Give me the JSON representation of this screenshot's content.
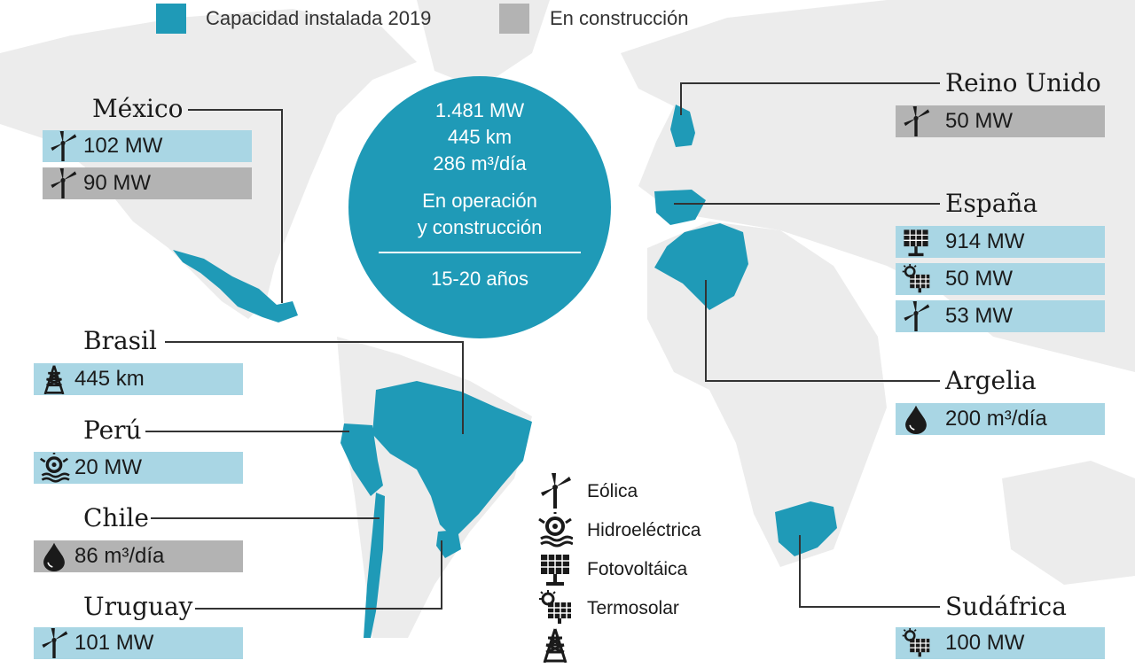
{
  "legend": {
    "installed_label": "Capacidad instalada 2019",
    "construction_label": "En construcción",
    "installed_color": "#1f9ab7",
    "construction_color": "#b3b3b3"
  },
  "summary": {
    "power": "1.481 MW",
    "distance": "445 km",
    "water": "286 m³/día",
    "status_line1": "En operación",
    "status_line2": "y construcción",
    "duration": "15-20 años"
  },
  "countries": {
    "mexico": {
      "name": "México",
      "values": [
        {
          "icon": "wind-icon",
          "value": "102 MW",
          "status": "installed"
        },
        {
          "icon": "wind-icon",
          "value": "90 MW",
          "status": "construction"
        }
      ]
    },
    "brasil": {
      "name": "Brasil",
      "values": [
        {
          "icon": "transmission-tower-icon",
          "value": "445 km",
          "status": "installed"
        }
      ]
    },
    "peru": {
      "name": "Perú",
      "values": [
        {
          "icon": "hydro-icon",
          "value": "20 MW",
          "status": "installed"
        }
      ]
    },
    "chile": {
      "name": "Chile",
      "values": [
        {
          "icon": "water-drop-icon",
          "value": "86 m³/día",
          "status": "construction"
        }
      ]
    },
    "uruguay": {
      "name": "Uruguay",
      "values": [
        {
          "icon": "wind-icon",
          "value": "101 MW",
          "status": "installed"
        }
      ]
    },
    "reino_unido": {
      "name": "Reino Unido",
      "values": [
        {
          "icon": "wind-icon",
          "value": "50 MW",
          "status": "construction"
        }
      ]
    },
    "espana": {
      "name": "España",
      "values": [
        {
          "icon": "solar-panel-icon",
          "value": "914 MW",
          "status": "installed"
        },
        {
          "icon": "thermosolar-icon",
          "value": "50 MW",
          "status": "installed"
        },
        {
          "icon": "wind-icon",
          "value": "53 MW",
          "status": "installed"
        }
      ]
    },
    "argelia": {
      "name": "Argelia",
      "values": [
        {
          "icon": "water-drop-icon",
          "value": "200 m³/día",
          "status": "installed"
        }
      ]
    },
    "sudafrica": {
      "name": "Sudáfrica",
      "values": [
        {
          "icon": "thermosolar-icon",
          "value": "100 MW",
          "status": "installed"
        }
      ]
    }
  },
  "icon_key": [
    {
      "icon": "wind-icon",
      "label": "Eólica"
    },
    {
      "icon": "hydro-icon",
      "label": "Hidroeléctrica"
    },
    {
      "icon": "solar-panel-icon",
      "label": "Fotovoltáica"
    },
    {
      "icon": "thermosolar-icon",
      "label": "Termosolar"
    },
    {
      "icon": "transmission-tower-icon",
      "label": ""
    }
  ],
  "map": {
    "land_color": "#ececec",
    "highlight_color": "#1f9ab7",
    "border_color": "#ffffff",
    "connector_color": "#333333"
  }
}
